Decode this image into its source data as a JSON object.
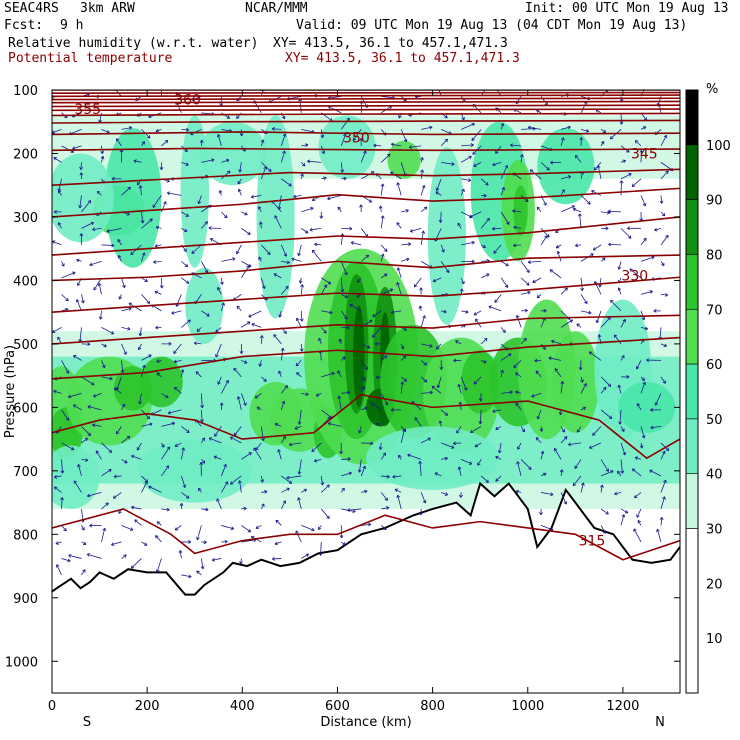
{
  "header": {
    "project": "SEAC4RS",
    "model": "3km ARW",
    "org": "NCAR/MMM",
    "init": "Init: 00 UTC Mon 19 Aug 13",
    "fcst_label": "Fcst:",
    "fcst_value": "9 h",
    "valid": "Valid: 09 UTC Mon 19 Aug 13 (04 CDT Mon 19 Aug 13)",
    "field1": "Relative humidity (w.r.t. water)",
    "field1_xy": "XY= 413.5, 36.1 to 457.1,471.3",
    "field2": "Potential temperature",
    "field2_xy": "XY= 413.5, 36.1 to 457.1,471.3",
    "field2_color": "#8b0000"
  },
  "chart_data": {
    "type": "heatmap",
    "xlabel": "Distance (km)",
    "ylabel": "Pressure (hPa)",
    "xlim": [
      0,
      1320
    ],
    "ylim": [
      1050,
      100
    ],
    "x_ticks": [
      0,
      200,
      400,
      600,
      800,
      1000,
      1200
    ],
    "y_ticks": [
      100,
      200,
      300,
      400,
      500,
      600,
      700,
      800,
      900,
      1000
    ],
    "x_endpoints": [
      "S",
      "N"
    ],
    "colorbar": {
      "unit": "%",
      "ticks": [
        10,
        20,
        30,
        40,
        50,
        60,
        70,
        80,
        90,
        100
      ],
      "levels": [
        0,
        30,
        40,
        50,
        60,
        70,
        80,
        90,
        100
      ],
      "colors": [
        "#ffffff",
        "#c8f7e0",
        "#70ecc4",
        "#48e6a8",
        "#50dd50",
        "#2cc42c",
        "#119011",
        "#006400"
      ]
    },
    "rh_cells": [
      {
        "x": 20,
        "p": 610,
        "rx": 45,
        "ry": 75,
        "level": 60
      },
      {
        "x": 30,
        "p": 640,
        "rx": 35,
        "ry": 40,
        "level": 70
      },
      {
        "x": 120,
        "p": 590,
        "rx": 90,
        "ry": 70,
        "level": 60
      },
      {
        "x": 170,
        "p": 570,
        "rx": 40,
        "ry": 35,
        "level": 70
      },
      {
        "x": 230,
        "p": 560,
        "rx": 45,
        "ry": 40,
        "level": 70
      },
      {
        "x": 140,
        "p": 290,
        "rx": 55,
        "ry": 40,
        "level": 60
      },
      {
        "x": 170,
        "p": 270,
        "rx": 60,
        "ry": 110,
        "level": 50
      },
      {
        "x": 300,
        "p": 260,
        "rx": 30,
        "ry": 120,
        "level": 40
      },
      {
        "x": 320,
        "p": 440,
        "rx": 40,
        "ry": 60,
        "level": 40
      },
      {
        "x": 470,
        "p": 610,
        "rx": 55,
        "ry": 50,
        "level": 60
      },
      {
        "x": 520,
        "p": 620,
        "rx": 60,
        "ry": 50,
        "level": 60
      },
      {
        "x": 580,
        "p": 640,
        "rx": 30,
        "ry": 40,
        "level": 70
      },
      {
        "x": 650,
        "p": 520,
        "rx": 120,
        "ry": 170,
        "level": 60
      },
      {
        "x": 640,
        "p": 510,
        "rx": 60,
        "ry": 140,
        "level": 70
      },
      {
        "x": 640,
        "p": 500,
        "rx": 25,
        "ry": 110,
        "level": 80
      },
      {
        "x": 645,
        "p": 520,
        "rx": 12,
        "ry": 80,
        "level": 90
      },
      {
        "x": 700,
        "p": 520,
        "rx": 25,
        "ry": 110,
        "level": 80
      },
      {
        "x": 700,
        "p": 510,
        "rx": 10,
        "ry": 60,
        "level": 90
      },
      {
        "x": 690,
        "p": 600,
        "rx": 30,
        "ry": 30,
        "level": 90
      },
      {
        "x": 760,
        "p": 560,
        "rx": 70,
        "ry": 90,
        "level": 70
      },
      {
        "x": 860,
        "p": 580,
        "rx": 80,
        "ry": 90,
        "level": 60
      },
      {
        "x": 900,
        "p": 560,
        "rx": 40,
        "ry": 50,
        "level": 70
      },
      {
        "x": 980,
        "p": 560,
        "rx": 60,
        "ry": 70,
        "level": 70
      },
      {
        "x": 1040,
        "p": 540,
        "rx": 60,
        "ry": 110,
        "level": 60
      },
      {
        "x": 1100,
        "p": 560,
        "rx": 50,
        "ry": 80,
        "level": 60
      },
      {
        "x": 740,
        "p": 210,
        "rx": 35,
        "ry": 30,
        "level": 60
      },
      {
        "x": 940,
        "p": 260,
        "rx": 60,
        "ry": 110,
        "level": 50
      },
      {
        "x": 980,
        "p": 290,
        "rx": 35,
        "ry": 80,
        "level": 60
      },
      {
        "x": 985,
        "p": 290,
        "rx": 15,
        "ry": 40,
        "level": 70
      },
      {
        "x": 1080,
        "p": 220,
        "rx": 60,
        "ry": 60,
        "level": 50
      },
      {
        "x": 830,
        "p": 330,
        "rx": 40,
        "ry": 140,
        "level": 40
      },
      {
        "x": 470,
        "p": 300,
        "rx": 40,
        "ry": 160,
        "level": 40
      },
      {
        "x": 380,
        "p": 200,
        "rx": 70,
        "ry": 50,
        "level": 40
      },
      {
        "x": 620,
        "p": 190,
        "rx": 60,
        "ry": 50,
        "level": 40
      },
      {
        "x": 1200,
        "p": 540,
        "rx": 60,
        "ry": 110,
        "level": 40
      },
      {
        "x": 1250,
        "p": 600,
        "rx": 60,
        "ry": 40,
        "level": 50
      },
      {
        "x": 60,
        "p": 270,
        "rx": 70,
        "ry": 70,
        "level": 40
      },
      {
        "x": 40,
        "p": 710,
        "rx": 60,
        "ry": 50,
        "level": 40
      },
      {
        "x": 300,
        "p": 700,
        "rx": 120,
        "ry": 50,
        "level": 40
      },
      {
        "x": 800,
        "p": 680,
        "rx": 140,
        "ry": 50,
        "level": 40
      }
    ],
    "rh_bands": [
      {
        "p_top": 140,
        "p_bottom": 240,
        "level": 30
      },
      {
        "p_top": 480,
        "p_bottom": 760,
        "level": 30
      },
      {
        "p_top": 520,
        "p_bottom": 720,
        "level": 40
      }
    ],
    "theta_levels": [
      355,
      360,
      350,
      345,
      330,
      315
    ],
    "theta_labels": [
      {
        "text": "355",
        "x": 75,
        "p": 130
      },
      {
        "text": "360",
        "x": 285,
        "p": 115
      },
      {
        "text": "350",
        "x": 640,
        "p": 175
      },
      {
        "text": "345",
        "x": 1245,
        "p": 200
      },
      {
        "text": "330",
        "x": 1225,
        "p": 392
      },
      {
        "text": "315",
        "x": 1135,
        "p": 810
      }
    ],
    "theta_lines": [
      [
        [
          0,
          100
        ],
        [
          1320,
          100
        ]
      ],
      [
        [
          0,
          105
        ],
        [
          1320,
          104
        ]
      ],
      [
        [
          0,
          110
        ],
        [
          1320,
          108
        ]
      ],
      [
        [
          0,
          115
        ],
        [
          1320,
          113
        ]
      ],
      [
        [
          0,
          120
        ],
        [
          1320,
          118
        ]
      ],
      [
        [
          0,
          126
        ],
        [
          1320,
          124
        ]
      ],
      [
        [
          0,
          132
        ],
        [
          1320,
          130
        ]
      ],
      [
        [
          0,
          140
        ],
        [
          600,
          138
        ],
        [
          1320,
          137
        ]
      ],
      [
        [
          0,
          152
        ],
        [
          400,
          150
        ],
        [
          800,
          149
        ],
        [
          1320,
          148
        ]
      ],
      [
        [
          0,
          170
        ],
        [
          400,
          166
        ],
        [
          800,
          170
        ],
        [
          1320,
          168
        ]
      ],
      [
        [
          0,
          195
        ],
        [
          300,
          192
        ],
        [
          800,
          195
        ],
        [
          1320,
          193
        ]
      ],
      [
        [
          0,
          250
        ],
        [
          250,
          240
        ],
        [
          500,
          230
        ],
        [
          800,
          235
        ],
        [
          1000,
          232
        ],
        [
          1320,
          225
        ]
      ],
      [
        [
          0,
          300
        ],
        [
          200,
          290
        ],
        [
          400,
          280
        ],
        [
          600,
          265
        ],
        [
          800,
          275
        ],
        [
          1000,
          270
        ],
        [
          1320,
          255
        ]
      ],
      [
        [
          0,
          360
        ],
        [
          200,
          350
        ],
        [
          400,
          340
        ],
        [
          600,
          330
        ],
        [
          800,
          335
        ],
        [
          1000,
          325
        ],
        [
          1320,
          300
        ]
      ],
      [
        [
          0,
          400
        ],
        [
          200,
          395
        ],
        [
          400,
          385
        ],
        [
          600,
          370
        ],
        [
          800,
          380
        ],
        [
          1000,
          365
        ],
        [
          1320,
          360
        ]
      ],
      [
        [
          0,
          450
        ],
        [
          200,
          440
        ],
        [
          400,
          430
        ],
        [
          600,
          420
        ],
        [
          800,
          425
        ],
        [
          1000,
          415
        ],
        [
          1320,
          395
        ]
      ],
      [
        [
          0,
          500
        ],
        [
          200,
          490
        ],
        [
          400,
          480
        ],
        [
          600,
          470
        ],
        [
          800,
          475
        ],
        [
          1000,
          460
        ],
        [
          1320,
          455
        ]
      ],
      [
        [
          0,
          555
        ],
        [
          200,
          545
        ],
        [
          400,
          520
        ],
        [
          600,
          510
        ],
        [
          800,
          520
        ],
        [
          1000,
          505
        ],
        [
          1320,
          490
        ]
      ],
      [
        [
          0,
          640
        ],
        [
          100,
          620
        ],
        [
          200,
          610
        ],
        [
          300,
          620
        ],
        [
          400,
          650
        ],
        [
          550,
          640
        ],
        [
          650,
          580
        ],
        [
          800,
          600
        ],
        [
          1000,
          590
        ],
        [
          1150,
          620
        ],
        [
          1250,
          680
        ],
        [
          1320,
          650
        ]
      ],
      [
        [
          0,
          790
        ],
        [
          150,
          760
        ],
        [
          250,
          800
        ],
        [
          300,
          830
        ],
        [
          400,
          810
        ],
        [
          500,
          800
        ],
        [
          600,
          800
        ],
        [
          700,
          770
        ],
        [
          800,
          790
        ],
        [
          900,
          780
        ],
        [
          1000,
          790
        ],
        [
          1100,
          800
        ],
        [
          1200,
          840
        ],
        [
          1320,
          810
        ]
      ]
    ],
    "terrain": [
      [
        0,
        890
      ],
      [
        20,
        880
      ],
      [
        40,
        870
      ],
      [
        60,
        885
      ],
      [
        80,
        875
      ],
      [
        100,
        860
      ],
      [
        130,
        870
      ],
      [
        160,
        855
      ],
      [
        200,
        860
      ],
      [
        240,
        860
      ],
      [
        280,
        895
      ],
      [
        300,
        895
      ],
      [
        320,
        880
      ],
      [
        360,
        860
      ],
      [
        380,
        845
      ],
      [
        410,
        850
      ],
      [
        440,
        840
      ],
      [
        480,
        850
      ],
      [
        520,
        845
      ],
      [
        560,
        830
      ],
      [
        600,
        825
      ],
      [
        650,
        800
      ],
      [
        700,
        790
      ],
      [
        760,
        770
      ],
      [
        800,
        760
      ],
      [
        850,
        750
      ],
      [
        880,
        770
      ],
      [
        900,
        720
      ],
      [
        930,
        740
      ],
      [
        960,
        720
      ],
      [
        1000,
        760
      ],
      [
        1020,
        820
      ],
      [
        1050,
        790
      ],
      [
        1080,
        730
      ],
      [
        1100,
        750
      ],
      [
        1140,
        790
      ],
      [
        1180,
        800
      ],
      [
        1220,
        840
      ],
      [
        1260,
        845
      ],
      [
        1300,
        840
      ],
      [
        1320,
        820
      ]
    ]
  }
}
